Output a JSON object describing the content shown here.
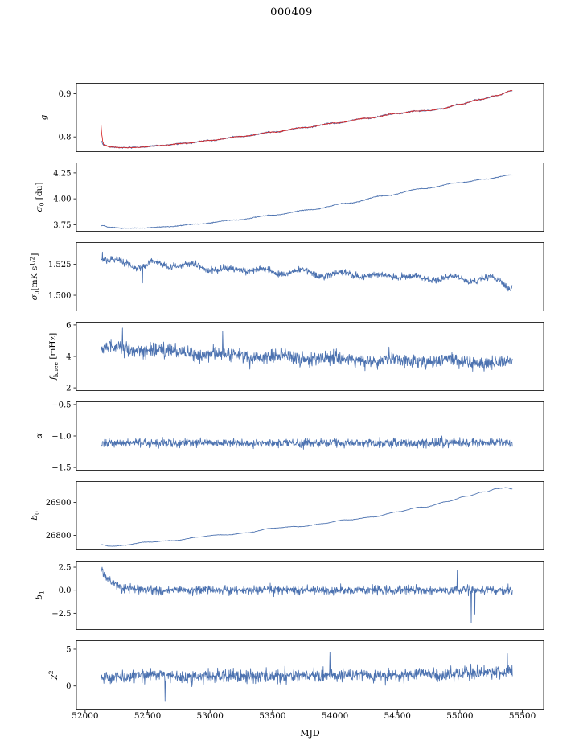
{
  "chart_data": {
    "type": "line",
    "title": "000409",
    "xlabel": "MJD",
    "legend": "none",
    "grid": false,
    "xlim": [
      51930,
      55670
    ],
    "xticks": {
      "values": [
        52000,
        52500,
        53000,
        53500,
        54000,
        54500,
        55000,
        55500
      ],
      "labels": [
        "52000",
        "52500",
        "53000",
        "53500",
        "54000",
        "54500",
        "55000",
        "55500"
      ]
    },
    "line_colors": {
      "data": "#4c72b0",
      "fit": "#d62728"
    },
    "panels": [
      {
        "name": "g",
        "ylabel_text": "g",
        "ylabel_segments": [
          [
            "g",
            "it"
          ]
        ],
        "ylim": [
          0.765,
          0.925
        ],
        "yticks": {
          "values": [
            0.8,
            0.9
          ],
          "labels": [
            "0.8",
            "0.9"
          ]
        },
        "series": [
          {
            "name": "g-data",
            "color": "#4c72b0",
            "x0": 52130,
            "x1": 55420,
            "n": 1100,
            "noise": 0.0018,
            "anchors": [
              [
                52130,
                0.79
              ],
              [
                52145,
                0.782
              ],
              [
                52200,
                0.777
              ],
              [
                52300,
                0.7752
              ],
              [
                52420,
                0.7758
              ],
              [
                52600,
                0.78
              ],
              [
                52800,
                0.7853
              ],
              [
                53000,
                0.792
              ],
              [
                53250,
                0.801
              ],
              [
                53500,
                0.811
              ],
              [
                53750,
                0.8215
              ],
              [
                54000,
                0.832
              ],
              [
                54250,
                0.843
              ],
              [
                54500,
                0.854
              ],
              [
                54650,
                0.86
              ],
              [
                54750,
                0.8612
              ],
              [
                54850,
                0.865
              ],
              [
                55000,
                0.8755
              ],
              [
                55150,
                0.886
              ],
              [
                55300,
                0.896
              ],
              [
                55420,
                0.907
              ]
            ]
          },
          {
            "name": "g-fit",
            "color": "#d62728",
            "x0": 52127,
            "x1": 55420,
            "n": 950,
            "noise": 0.0011,
            "anchors": [
              [
                52127,
                0.829
              ],
              [
                52131,
                0.814
              ],
              [
                52136,
                0.799
              ],
              [
                52142,
                0.788
              ],
              [
                52150,
                0.7812
              ],
              [
                52200,
                0.7768
              ],
              [
                52300,
                0.7752
              ],
              [
                52420,
                0.7758
              ],
              [
                52600,
                0.78
              ],
              [
                52800,
                0.7853
              ],
              [
                53000,
                0.792
              ],
              [
                53250,
                0.801
              ],
              [
                53500,
                0.811
              ],
              [
                53750,
                0.8215
              ],
              [
                54000,
                0.832
              ],
              [
                54250,
                0.843
              ],
              [
                54500,
                0.854
              ],
              [
                54650,
                0.86
              ],
              [
                54750,
                0.8612
              ],
              [
                54850,
                0.865
              ],
              [
                55000,
                0.8755
              ],
              [
                55150,
                0.886
              ],
              [
                55300,
                0.896
              ],
              [
                55420,
                0.907
              ]
            ]
          }
        ]
      },
      {
        "name": "sigma0-du",
        "ylabel_text": "sigma_0 [du]",
        "ylabel_segments": [
          [
            "σ",
            "it"
          ],
          [
            "0",
            "sub"
          ],
          [
            " [du]",
            "n"
          ]
        ],
        "ylim": [
          3.683,
          4.35
        ],
        "yticks": {
          "values": [
            3.75,
            4.0,
            4.25
          ],
          "labels": [
            "3.75",
            "4.00",
            "4.25"
          ]
        },
        "series": [
          {
            "name": "sigma0-du-data",
            "color": "#4c72b0",
            "x0": 52130,
            "x1": 55420,
            "n": 1100,
            "noise": 0.004,
            "anchors": [
              [
                52130,
                3.742
              ],
              [
                52200,
                3.725
              ],
              [
                52300,
                3.717
              ],
              [
                52450,
                3.718
              ],
              [
                52650,
                3.73
              ],
              [
                52900,
                3.756
              ],
              [
                53200,
                3.795
              ],
              [
                53500,
                3.842
              ],
              [
                53800,
                3.895
              ],
              [
                54100,
                3.957
              ],
              [
                54400,
                4.03
              ],
              [
                54700,
                4.098
              ],
              [
                55000,
                4.155
              ],
              [
                55200,
                4.19
              ],
              [
                55420,
                4.23
              ]
            ]
          }
        ]
      },
      {
        "name": "sigma0-mks",
        "ylabel_text": "sigma_0 [mK s^1/2]",
        "ylabel_segments": [
          [
            "σ",
            "it"
          ],
          [
            "0",
            "sub"
          ],
          [
            "[mK s",
            "n"
          ],
          [
            "1/2",
            "sup"
          ],
          [
            "]",
            "n"
          ]
        ],
        "ylim": [
          1.487,
          1.543
        ],
        "yticks": {
          "values": [
            1.5,
            1.525
          ],
          "labels": [
            "1.500",
            "1.525"
          ]
        },
        "series": [
          {
            "name": "sigma0-mks-data",
            "color": "#4c72b0",
            "x0": 52130,
            "x1": 55420,
            "n": 1150,
            "noise": 0.0028,
            "wave": [
              0.0018,
              300,
              0.7
            ],
            "anchors": [
              [
                52130,
                1.53
              ],
              [
                52180,
                1.5275
              ],
              [
                52300,
                1.5268
              ],
              [
                52450,
                1.523
              ],
              [
                52550,
                1.526
              ],
              [
                52700,
                1.5245
              ],
              [
                52900,
                1.5235
              ],
              [
                53100,
                1.52
              ],
              [
                53300,
                1.5215
              ],
              [
                53500,
                1.5185
              ],
              [
                53700,
                1.5195
              ],
              [
                53900,
                1.5165
              ],
              [
                54100,
                1.5175
              ],
              [
                54300,
                1.515
              ],
              [
                54500,
                1.516
              ],
              [
                54700,
                1.5135
              ],
              [
                54900,
                1.514
              ],
              [
                55100,
                1.5125
              ],
              [
                55250,
                1.5135
              ],
              [
                55420,
                1.507
              ]
            ],
            "spikes": [
              [
                52140,
                1.535
              ],
              [
                52460,
                1.51
              ]
            ]
          }
        ]
      },
      {
        "name": "fknee",
        "ylabel_text": "f_knee [mHz]",
        "ylabel_segments": [
          [
            "f",
            "it"
          ],
          [
            "knee",
            "sub"
          ],
          [
            " [mHz]",
            "n"
          ]
        ],
        "ylim": [
          1.8,
          6.2
        ],
        "yticks": {
          "values": [
            2,
            4,
            6
          ],
          "labels": [
            "2",
            "4",
            "6"
          ]
        },
        "series": [
          {
            "name": "fknee-data",
            "color": "#4c72b0",
            "x0": 52130,
            "x1": 55420,
            "n": 1150,
            "noise": 0.48,
            "wave": [
              0.12,
              450,
              1.3
            ],
            "anchors": [
              [
                52130,
                4.55
              ],
              [
                52400,
                4.45
              ],
              [
                52800,
                4.25
              ],
              [
                53200,
                4.05
              ],
              [
                53600,
                3.95
              ],
              [
                54000,
                3.85
              ],
              [
                54400,
                3.75
              ],
              [
                54800,
                3.7
              ],
              [
                55100,
                3.65
              ],
              [
                55420,
                3.6
              ]
            ],
            "spikes": [
              [
                52300,
                5.8
              ],
              [
                53100,
                5.6
              ]
            ]
          }
        ]
      },
      {
        "name": "alpha",
        "ylabel_text": "alpha",
        "ylabel_segments": [
          [
            "α",
            "it"
          ]
        ],
        "ylim": [
          -1.55,
          -0.45
        ],
        "yticks": {
          "values": [
            -0.5,
            -1.0,
            -1.5
          ],
          "labels": [
            "−0.5",
            "−1.0",
            "−1.5"
          ]
        },
        "series": [
          {
            "name": "alpha-data",
            "color": "#4c72b0",
            "x0": 52130,
            "x1": 55420,
            "n": 1150,
            "noise": 0.072,
            "anchors": [
              [
                52130,
                -1.115
              ],
              [
                53000,
                -1.115
              ],
              [
                54000,
                -1.11
              ],
              [
                55420,
                -1.105
              ]
            ]
          }
        ]
      },
      {
        "name": "b0",
        "ylabel_text": "b_0",
        "ylabel_segments": [
          [
            "b",
            "it"
          ],
          [
            "0",
            "sub"
          ]
        ],
        "ylim": [
          26755,
          26965
        ],
        "yticks": {
          "values": [
            26800,
            26900
          ],
          "labels": [
            "26800",
            "26900"
          ]
        },
        "series": [
          {
            "name": "b0-data",
            "color": "#4c72b0",
            "x0": 52130,
            "x1": 55420,
            "n": 1000,
            "noise": 0.7,
            "wave": [
              2.0,
              520,
              2.1
            ],
            "anchors": [
              [
                52130,
                26773
              ],
              [
                52200,
                26769
              ],
              [
                52320,
                26771
              ],
              [
                52500,
                26778
              ],
              [
                52700,
                26786
              ],
              [
                52900,
                26794
              ],
              [
                53100,
                26801
              ],
              [
                53300,
                26810
              ],
              [
                53500,
                26820
              ],
              [
                53700,
                26828
              ],
              [
                53900,
                26836
              ],
              [
                54100,
                26846
              ],
              [
                54300,
                26858
              ],
              [
                54500,
                26870
              ],
              [
                54700,
                26886
              ],
              [
                54900,
                26904
              ],
              [
                55050,
                26917
              ],
              [
                55200,
                26932
              ],
              [
                55300,
                26944
              ],
              [
                55370,
                26947
              ],
              [
                55420,
                26942
              ]
            ]
          }
        ]
      },
      {
        "name": "b1",
        "ylabel_text": "b_1",
        "ylabel_segments": [
          [
            "b",
            "it"
          ],
          [
            "1",
            "sub"
          ]
        ],
        "ylim": [
          -4.3,
          3.2
        ],
        "yticks": {
          "values": [
            -2.5,
            0.0,
            2.5
          ],
          "labels": [
            "−2.5",
            "0.0",
            "2.5"
          ]
        },
        "series": [
          {
            "name": "b1-data",
            "color": "#4c72b0",
            "x0": 52130,
            "x1": 55420,
            "n": 1150,
            "noise": 0.5,
            "anchors": [
              [
                52130,
                2.25
              ],
              [
                52170,
                1.3
              ],
              [
                52230,
                0.6
              ],
              [
                52320,
                0.2
              ],
              [
                52450,
                0.05
              ],
              [
                52700,
                0.0
              ],
              [
                55420,
                0.0
              ]
            ],
            "spikes": [
              [
                52135,
                2.5
              ],
              [
                54980,
                2.2
              ],
              [
                55090,
                -3.55
              ],
              [
                55120,
                -2.6
              ]
            ]
          }
        ]
      },
      {
        "name": "chi2",
        "ylabel_text": "chi^2",
        "ylabel_segments": [
          [
            "χ",
            "it"
          ],
          [
            "2",
            "sup"
          ]
        ],
        "ylim": [
          -3.2,
          6.2
        ],
        "yticks": {
          "values": [
            0,
            5
          ],
          "labels": [
            "0",
            "5"
          ]
        },
        "series": [
          {
            "name": "chi2-data",
            "color": "#4c72b0",
            "x0": 52130,
            "x1": 55420,
            "n": 1150,
            "noise": 0.95,
            "anchors": [
              [
                52130,
                1.1
              ],
              [
                52500,
                1.5
              ],
              [
                52800,
                1.2
              ],
              [
                53200,
                1.4
              ],
              [
                53600,
                1.4
              ],
              [
                54000,
                1.5
              ],
              [
                54400,
                1.4
              ],
              [
                54800,
                1.6
              ],
              [
                55100,
                1.7
              ],
              [
                55420,
                1.9
              ]
            ],
            "spikes": [
              [
                52640,
                -2.0
              ],
              [
                53960,
                4.6
              ],
              [
                55380,
                4.4
              ]
            ]
          }
        ]
      }
    ]
  }
}
